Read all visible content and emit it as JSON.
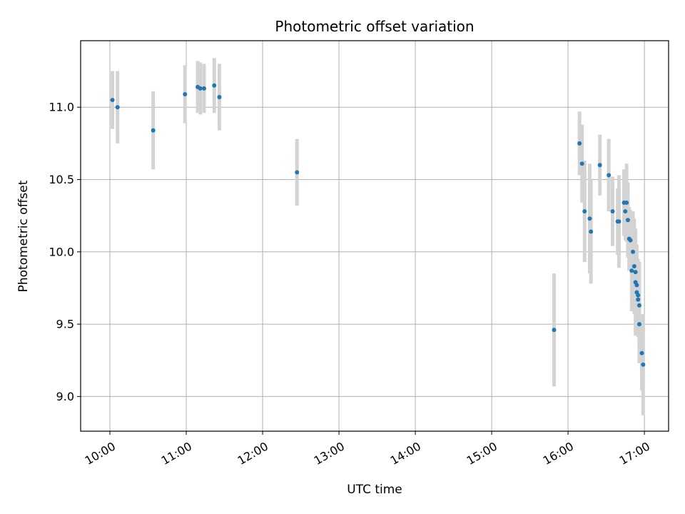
{
  "chart_data": {
    "type": "scatter",
    "title": "Photometric offset variation",
    "xlabel": "UTC time",
    "ylabel": "Photometric offset",
    "xlim": [
      "09:37",
      "17:19"
    ],
    "ylim": [
      8.76,
      11.46
    ],
    "x_ticks": [
      "10:00",
      "11:00",
      "12:00",
      "13:00",
      "14:00",
      "15:00",
      "16:00",
      "17:00"
    ],
    "y_ticks": [
      "9.0",
      "9.5",
      "10.0",
      "10.5",
      "11.0"
    ],
    "grid": true,
    "colors": {
      "point": "#1f77b4",
      "errorbar": "#d3d3d3",
      "grid": "#b0b0b0"
    },
    "points": [
      {
        "time": "10:02",
        "y": 11.05,
        "err": 0.2
      },
      {
        "time": "10:06",
        "y": 11.0,
        "err": 0.25
      },
      {
        "time": "10:34",
        "y": 10.84,
        "err": 0.27
      },
      {
        "time": "10:59",
        "y": 11.09,
        "err": 0.2
      },
      {
        "time": "11:09",
        "y": 11.14,
        "err": 0.18
      },
      {
        "time": "11:11",
        "y": 11.13,
        "err": 0.18
      },
      {
        "time": "11:14",
        "y": 11.13,
        "err": 0.17
      },
      {
        "time": "11:22",
        "y": 11.15,
        "err": 0.19
      },
      {
        "time": "11:26",
        "y": 11.07,
        "err": 0.23
      },
      {
        "time": "12:27",
        "y": 10.55,
        "err": 0.23
      },
      {
        "time": "15:49",
        "y": 9.46,
        "err": 0.39
      },
      {
        "time": "16:09",
        "y": 10.75,
        "err": 0.22
      },
      {
        "time": "16:11",
        "y": 10.61,
        "err": 0.27
      },
      {
        "time": "16:13",
        "y": 10.28,
        "err": 0.35
      },
      {
        "time": "16:17",
        "y": 10.23,
        "err": 0.38
      },
      {
        "time": "16:18",
        "y": 10.14,
        "err": 0.36
      },
      {
        "time": "16:25",
        "y": 10.6,
        "err": 0.21
      },
      {
        "time": "16:32",
        "y": 10.53,
        "err": 0.25
      },
      {
        "time": "16:35",
        "y": 10.28,
        "err": 0.24
      },
      {
        "time": "16:39",
        "y": 10.21,
        "err": 0.23
      },
      {
        "time": "16:40",
        "y": 10.21,
        "err": 0.32
      },
      {
        "time": "16:44",
        "y": 10.34,
        "err": 0.23
      },
      {
        "time": "16:45",
        "y": 10.28,
        "err": 0.2
      },
      {
        "time": "16:46",
        "y": 10.34,
        "err": 0.27
      },
      {
        "time": "16:47",
        "y": 10.22,
        "err": 0.26
      },
      {
        "time": "16:48",
        "y": 10.09,
        "err": 0.22
      },
      {
        "time": "16:49",
        "y": 10.08,
        "err": 0.21
      },
      {
        "time": "16:50",
        "y": 9.87,
        "err": 0.28
      },
      {
        "time": "16:51",
        "y": 10.0,
        "err": 0.28
      },
      {
        "time": "16:52",
        "y": 9.9,
        "err": 0.33
      },
      {
        "time": "16:53",
        "y": 9.86,
        "err": 0.29
      },
      {
        "time": "16:53",
        "y": 9.79,
        "err": 0.37
      },
      {
        "time": "16:54",
        "y": 9.77,
        "err": 0.28
      },
      {
        "time": "16:54",
        "y": 9.72,
        "err": 0.26
      },
      {
        "time": "16:55",
        "y": 9.7,
        "err": 0.25
      },
      {
        "time": "16:55",
        "y": 9.67,
        "err": 0.26
      },
      {
        "time": "16:56",
        "y": 9.63,
        "err": 0.3
      },
      {
        "time": "16:56",
        "y": 9.5,
        "err": 0.27
      },
      {
        "time": "16:58",
        "y": 9.3,
        "err": 0.26
      },
      {
        "time": "16:59",
        "y": 9.22,
        "err": 0.35
      }
    ]
  }
}
